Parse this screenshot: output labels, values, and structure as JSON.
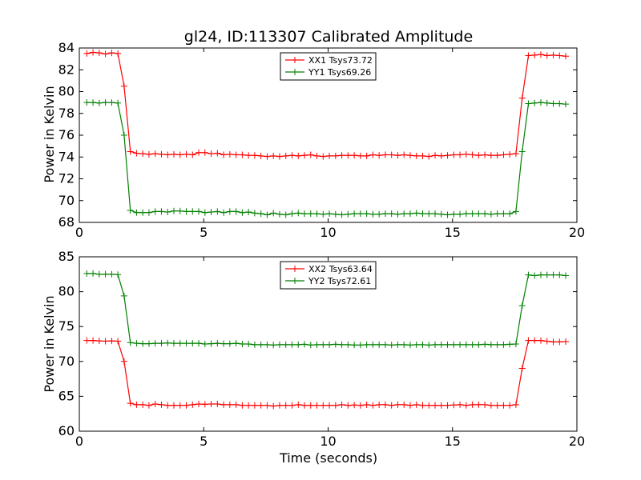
{
  "chart_data": [
    {
      "type": "line",
      "title": "gl24, ID:113307 Calibrated Amplitude",
      "xlabel": "",
      "ylabel": "Power in Kelvin",
      "xlim": [
        0,
        20
      ],
      "ylim": [
        68,
        84
      ],
      "xticks": [
        "0",
        "5",
        "10",
        "15",
        "20"
      ],
      "yticks": [
        "68",
        "70",
        "72",
        "74",
        "76",
        "78",
        "80",
        "82",
        "84"
      ],
      "legend_position": "top-center",
      "x": [
        0.3,
        0.55,
        0.8,
        1.05,
        1.3,
        1.55,
        1.8,
        2.05,
        2.3,
        2.55,
        2.8,
        3.05,
        3.3,
        3.55,
        3.8,
        4.05,
        4.3,
        4.55,
        4.8,
        5.05,
        5.3,
        5.55,
        5.8,
        6.05,
        6.3,
        6.55,
        6.8,
        7.05,
        7.3,
        7.55,
        7.8,
        8.05,
        8.3,
        8.55,
        8.8,
        9.05,
        9.3,
        9.55,
        9.8,
        10.05,
        10.3,
        10.55,
        10.8,
        11.05,
        11.3,
        11.55,
        11.8,
        12.05,
        12.3,
        12.55,
        12.8,
        13.05,
        13.3,
        13.55,
        13.8,
        14.05,
        14.3,
        14.55,
        14.8,
        15.05,
        15.3,
        15.55,
        15.8,
        16.05,
        16.3,
        16.55,
        16.8,
        17.05,
        17.3,
        17.55,
        17.8,
        18.05,
        18.3,
        18.55,
        18.8,
        19.05,
        19.3,
        19.55
      ],
      "series": [
        {
          "name": "XX1 Tsys73.72",
          "color": "#ff0000",
          "values": [
            83.5,
            83.6,
            83.55,
            83.45,
            83.55,
            83.5,
            80.5,
            74.5,
            74.35,
            74.3,
            74.25,
            74.3,
            74.25,
            74.2,
            74.25,
            74.2,
            74.25,
            74.2,
            74.4,
            74.4,
            74.3,
            74.35,
            74.2,
            74.25,
            74.2,
            74.2,
            74.15,
            74.15,
            74.1,
            74.05,
            74.1,
            74.05,
            74.1,
            74.15,
            74.1,
            74.15,
            74.2,
            74.1,
            74.05,
            74.1,
            74.1,
            74.15,
            74.15,
            74.15,
            74.1,
            74.1,
            74.2,
            74.15,
            74.2,
            74.2,
            74.15,
            74.2,
            74.15,
            74.1,
            74.1,
            74.05,
            74.15,
            74.1,
            74.15,
            74.2,
            74.2,
            74.25,
            74.2,
            74.15,
            74.2,
            74.15,
            74.15,
            74.2,
            74.25,
            74.3,
            79.4,
            83.3,
            83.35,
            83.4,
            83.3,
            83.35,
            83.3,
            83.25
          ]
        },
        {
          "name": "YY1 Tsys69.26",
          "color": "#008000",
          "values": [
            79.0,
            79.0,
            78.95,
            79.0,
            79.0,
            78.95,
            76.0,
            69.1,
            68.9,
            68.9,
            68.9,
            69.0,
            69.0,
            68.95,
            69.05,
            69.05,
            69.0,
            69.0,
            69.0,
            68.9,
            68.95,
            69.0,
            68.9,
            69.0,
            69.0,
            68.9,
            68.95,
            68.85,
            68.8,
            68.7,
            68.85,
            68.75,
            68.7,
            68.8,
            68.85,
            68.8,
            68.8,
            68.8,
            68.75,
            68.8,
            68.75,
            68.7,
            68.75,
            68.8,
            68.8,
            68.8,
            68.75,
            68.75,
            68.8,
            68.8,
            68.75,
            68.8,
            68.8,
            68.85,
            68.8,
            68.8,
            68.8,
            68.75,
            68.7,
            68.75,
            68.75,
            68.8,
            68.8,
            68.8,
            68.8,
            68.75,
            68.8,
            68.8,
            68.8,
            69.0,
            74.5,
            78.9,
            78.95,
            79.0,
            78.95,
            78.9,
            78.9,
            78.85
          ]
        }
      ]
    },
    {
      "type": "line",
      "title": "",
      "xlabel": "Time (seconds)",
      "ylabel": "Power in Kelvin",
      "xlim": [
        0,
        20
      ],
      "ylim": [
        60,
        85
      ],
      "xticks": [
        "0",
        "5",
        "10",
        "15",
        "20"
      ],
      "yticks": [
        "60",
        "65",
        "70",
        "75",
        "80",
        "85"
      ],
      "legend_position": "top-center",
      "x": [
        0.3,
        0.55,
        0.8,
        1.05,
        1.3,
        1.55,
        1.8,
        2.05,
        2.3,
        2.55,
        2.8,
        3.05,
        3.3,
        3.55,
        3.8,
        4.05,
        4.3,
        4.55,
        4.8,
        5.05,
        5.3,
        5.55,
        5.8,
        6.05,
        6.3,
        6.55,
        6.8,
        7.05,
        7.3,
        7.55,
        7.8,
        8.05,
        8.3,
        8.55,
        8.8,
        9.05,
        9.3,
        9.55,
        9.8,
        10.05,
        10.3,
        10.55,
        10.8,
        11.05,
        11.3,
        11.55,
        11.8,
        12.05,
        12.3,
        12.55,
        12.8,
        13.05,
        13.3,
        13.55,
        13.8,
        14.05,
        14.3,
        14.55,
        14.8,
        15.05,
        15.3,
        15.55,
        15.8,
        16.05,
        16.3,
        16.55,
        16.8,
        17.05,
        17.3,
        17.55,
        17.8,
        18.05,
        18.3,
        18.55,
        18.8,
        19.05,
        19.3,
        19.55
      ],
      "series": [
        {
          "name": "XX2 Tsys63.64",
          "color": "#ff0000",
          "values": [
            73.0,
            73.0,
            72.95,
            72.9,
            72.95,
            72.9,
            70.0,
            64.0,
            63.8,
            63.8,
            63.7,
            63.9,
            63.8,
            63.7,
            63.7,
            63.7,
            63.7,
            63.8,
            63.9,
            63.85,
            63.9,
            63.9,
            63.8,
            63.8,
            63.8,
            63.7,
            63.7,
            63.7,
            63.7,
            63.7,
            63.6,
            63.7,
            63.7,
            63.7,
            63.8,
            63.7,
            63.7,
            63.7,
            63.7,
            63.7,
            63.7,
            63.8,
            63.7,
            63.75,
            63.7,
            63.8,
            63.7,
            63.8,
            63.8,
            63.7,
            63.8,
            63.8,
            63.7,
            63.8,
            63.7,
            63.7,
            63.7,
            63.7,
            63.7,
            63.75,
            63.8,
            63.7,
            63.8,
            63.8,
            63.8,
            63.7,
            63.7,
            63.7,
            63.7,
            63.8,
            69.0,
            73.0,
            73.0,
            73.0,
            72.9,
            72.8,
            72.8,
            72.85
          ]
        },
        {
          "name": "YY2 Tsys72.61",
          "color": "#008000",
          "values": [
            82.6,
            82.6,
            82.5,
            82.5,
            82.5,
            82.45,
            79.4,
            72.7,
            72.6,
            72.55,
            72.55,
            72.6,
            72.6,
            72.65,
            72.6,
            72.6,
            72.6,
            72.6,
            72.6,
            72.5,
            72.55,
            72.6,
            72.55,
            72.55,
            72.6,
            72.5,
            72.5,
            72.4,
            72.4,
            72.4,
            72.35,
            72.4,
            72.4,
            72.4,
            72.4,
            72.45,
            72.35,
            72.4,
            72.4,
            72.4,
            72.45,
            72.4,
            72.4,
            72.35,
            72.35,
            72.4,
            72.4,
            72.4,
            72.4,
            72.35,
            72.4,
            72.4,
            72.35,
            72.4,
            72.4,
            72.35,
            72.4,
            72.4,
            72.4,
            72.4,
            72.4,
            72.4,
            72.4,
            72.4,
            72.45,
            72.4,
            72.4,
            72.4,
            72.45,
            72.5,
            78.0,
            82.4,
            82.3,
            82.4,
            82.4,
            82.4,
            82.4,
            82.3
          ]
        }
      ]
    }
  ]
}
